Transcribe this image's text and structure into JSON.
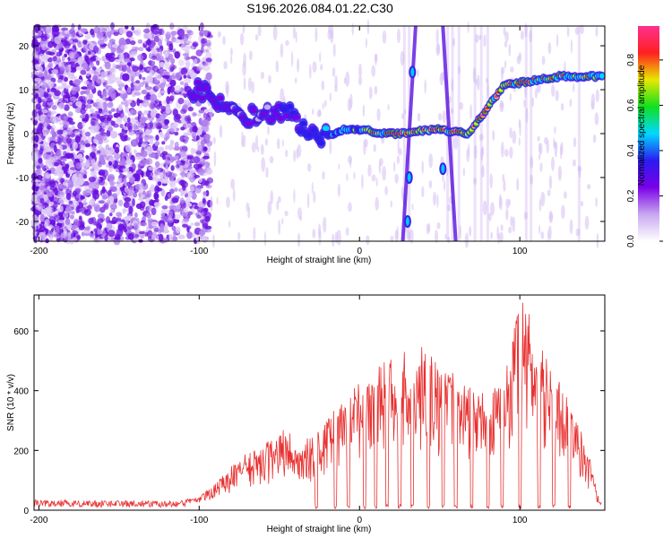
{
  "title": "S196.2026.084.01.22.C30",
  "colors": {
    "snr_line": "#e83030",
    "plot_bg": "#ffffff",
    "colormap": [
      "#ffffff",
      "#c8a8f0",
      "#7a00e8",
      "#2a1cf0",
      "#00d8ff",
      "#10e020",
      "#e8e800",
      "#ff2020",
      "#ff3090"
    ]
  },
  "chart_data": [
    {
      "type": "heatmap",
      "title": "S196.2026.084.01.22.C30",
      "xlabel": "Height of straight line (km)",
      "ylabel": "Frequency (Hz)",
      "xlim": [
        -203,
        153
      ],
      "ylim": [
        -24.5,
        24.5
      ],
      "x_ticks": [
        -200,
        -100,
        0,
        100
      ],
      "x_tick_labels": [
        "-200",
        "-100",
        "0",
        "100"
      ],
      "y_ticks": [
        -20,
        -10,
        0,
        10,
        20
      ],
      "y_tick_labels": [
        "-20",
        "-10",
        "0",
        "10",
        "20"
      ],
      "colorbar": {
        "label": "Normalized spectral amplitude",
        "range": [
          0,
          0.95
        ],
        "ticks": [
          0,
          0.2,
          0.4,
          0.6,
          0.8
        ],
        "tick_labels": [
          "0.0",
          "0.2",
          "0.4",
          "0.6",
          "0.8"
        ]
      },
      "dominant_track": [
        {
          "height_km": -98,
          "freq_hz": 10,
          "amp": 0.35
        },
        {
          "height_km": -85,
          "freq_hz": 6,
          "amp": 0.35
        },
        {
          "height_km": -70,
          "freq_hz": 4,
          "amp": 0.3
        },
        {
          "height_km": -55,
          "freq_hz": 5,
          "amp": 0.3
        },
        {
          "height_km": -45,
          "freq_hz": 5,
          "amp": 0.45
        },
        {
          "height_km": -35,
          "freq_hz": 2,
          "amp": 0.45
        },
        {
          "height_km": -28,
          "freq_hz": -1,
          "amp": 0.5
        },
        {
          "height_km": -20,
          "freq_hz": -0.5,
          "amp": 0.6
        },
        {
          "height_km": -10,
          "freq_hz": 1,
          "amp": 0.6
        },
        {
          "height_km": 0,
          "freq_hz": 1,
          "amp": 0.75
        },
        {
          "height_km": 15,
          "freq_hz": 0,
          "amp": 0.9
        },
        {
          "height_km": 25,
          "freq_hz": 0,
          "amp": 0.9
        },
        {
          "height_km": 47,
          "freq_hz": 1,
          "amp": 0.9
        },
        {
          "height_km": 68,
          "freq_hz": 0,
          "amp": 0.9
        },
        {
          "height_km": 90,
          "freq_hz": 11,
          "amp": 0.9
        },
        {
          "height_km": 125,
          "freq_hz": 13,
          "amp": 0.8
        },
        {
          "height_km": 150,
          "freq_hz": 13,
          "amp": 0.75
        }
      ]
    },
    {
      "type": "line",
      "xlabel": "Height of straight line (km)",
      "ylabel": "SNR (10 * v/v)",
      "xlim": [
        -203,
        153
      ],
      "ylim": [
        0,
        720
      ],
      "x_ticks": [
        -200,
        -100,
        0,
        100
      ],
      "x_tick_labels": [
        "-200",
        "-100",
        "0",
        "100"
      ],
      "y_ticks": [
        0,
        200,
        400,
        600
      ],
      "y_tick_labels": [
        "0",
        "200",
        "400",
        "600"
      ],
      "series": [
        {
          "name": "SNR",
          "envelope_x": [
            -203,
            -150,
            -110,
            -100,
            -90,
            -80,
            -70,
            -60,
            -50,
            -45,
            -40,
            -30,
            -20,
            -10,
            0,
            10,
            20,
            30,
            40,
            50,
            60,
            70,
            80,
            90,
            97,
            103,
            110,
            120,
            130,
            140,
            145,
            150
          ],
          "envelope_y": [
            20,
            25,
            35,
            45,
            90,
            150,
            200,
            220,
            260,
            300,
            200,
            260,
            300,
            400,
            440,
            470,
            520,
            540,
            550,
            500,
            460,
            420,
            400,
            420,
            650,
            720,
            560,
            500,
            380,
            250,
            150,
            30
          ],
          "gap_centers_x": [
            -27,
            -15,
            -7,
            3,
            10,
            17,
            25,
            33,
            43,
            52,
            60,
            70,
            80,
            89,
            100,
            112,
            121,
            131
          ]
        }
      ]
    }
  ]
}
